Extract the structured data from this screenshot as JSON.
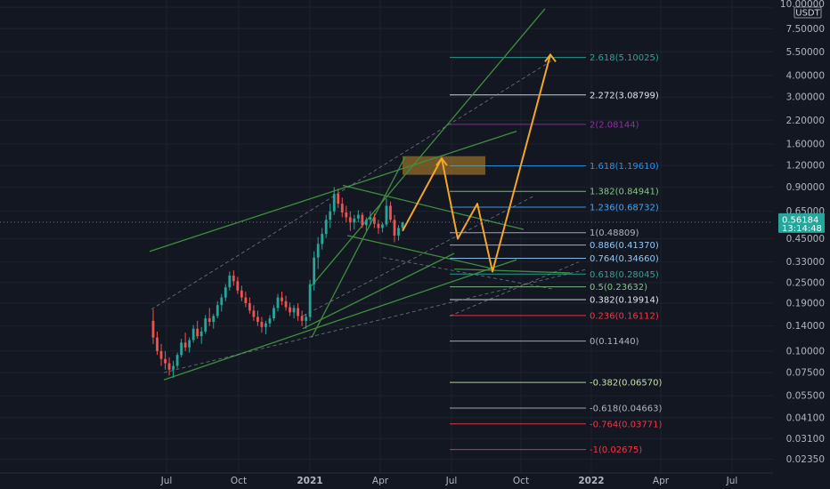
{
  "chart_data": {
    "type": "candlestick",
    "symbol_quote": "USDT",
    "scale": "log",
    "ylim": [
      0.0205,
      10.5
    ],
    "y_ticks": [
      "10.00000",
      "7.50000",
      "5.50000",
      "4.00000",
      "3.00000",
      "2.20000",
      "1.60000",
      "1.20000",
      "0.90000",
      "0.65000",
      "0.45000",
      "0.33000",
      "0.25000",
      "0.19000",
      "0.14000",
      "0.10000",
      "0.07500",
      "0.05500",
      "0.04100",
      "0.03100",
      "0.02350"
    ],
    "x_ticks": [
      "Jul",
      "Oct",
      "2021",
      "Apr",
      "Jul",
      "Oct",
      "2022",
      "Apr",
      "Jul"
    ],
    "bold_x_ticks": [
      "2021",
      "2022"
    ],
    "last_price": {
      "value": "0.56184",
      "countdown": "13:14:48",
      "color": "#26a69a"
    },
    "candles_ohlc": [
      [
        0.15,
        0.175,
        0.11,
        0.12
      ],
      [
        0.12,
        0.13,
        0.095,
        0.1
      ],
      [
        0.1,
        0.11,
        0.082,
        0.09
      ],
      [
        0.09,
        0.1,
        0.078,
        0.085
      ],
      [
        0.085,
        0.092,
        0.072,
        0.078
      ],
      [
        0.078,
        0.088,
        0.07,
        0.082
      ],
      [
        0.082,
        0.098,
        0.079,
        0.095
      ],
      [
        0.095,
        0.118,
        0.092,
        0.112
      ],
      [
        0.112,
        0.128,
        0.1,
        0.105
      ],
      [
        0.105,
        0.12,
        0.098,
        0.116
      ],
      [
        0.116,
        0.142,
        0.112,
        0.135
      ],
      [
        0.135,
        0.15,
        0.118,
        0.122
      ],
      [
        0.122,
        0.138,
        0.11,
        0.13
      ],
      [
        0.13,
        0.162,
        0.126,
        0.155
      ],
      [
        0.155,
        0.178,
        0.14,
        0.148
      ],
      [
        0.148,
        0.165,
        0.135,
        0.16
      ],
      [
        0.16,
        0.195,
        0.155,
        0.185
      ],
      [
        0.185,
        0.215,
        0.17,
        0.205
      ],
      [
        0.205,
        0.245,
        0.195,
        0.235
      ],
      [
        0.235,
        0.29,
        0.225,
        0.275
      ],
      [
        0.275,
        0.295,
        0.24,
        0.255
      ],
      [
        0.255,
        0.27,
        0.215,
        0.225
      ],
      [
        0.225,
        0.24,
        0.195,
        0.205
      ],
      [
        0.205,
        0.222,
        0.18,
        0.19
      ],
      [
        0.19,
        0.205,
        0.165,
        0.172
      ],
      [
        0.172,
        0.185,
        0.15,
        0.158
      ],
      [
        0.158,
        0.172,
        0.14,
        0.148
      ],
      [
        0.148,
        0.158,
        0.128,
        0.138
      ],
      [
        0.138,
        0.15,
        0.125,
        0.145
      ],
      [
        0.145,
        0.162,
        0.138,
        0.155
      ],
      [
        0.155,
        0.185,
        0.15,
        0.178
      ],
      [
        0.178,
        0.215,
        0.17,
        0.205
      ],
      [
        0.205,
        0.222,
        0.185,
        0.195
      ],
      [
        0.195,
        0.21,
        0.172,
        0.18
      ],
      [
        0.18,
        0.192,
        0.16,
        0.168
      ],
      [
        0.168,
        0.185,
        0.155,
        0.178
      ],
      [
        0.178,
        0.19,
        0.15,
        0.16
      ],
      [
        0.16,
        0.172,
        0.14,
        0.15
      ],
      [
        0.15,
        0.165,
        0.135,
        0.158
      ],
      [
        0.158,
        0.26,
        0.15,
        0.245
      ],
      [
        0.245,
        0.38,
        0.225,
        0.35
      ],
      [
        0.35,
        0.46,
        0.3,
        0.42
      ],
      [
        0.42,
        0.52,
        0.39,
        0.48
      ],
      [
        0.48,
        0.62,
        0.455,
        0.58
      ],
      [
        0.58,
        0.72,
        0.52,
        0.65
      ],
      [
        0.65,
        0.9,
        0.62,
        0.82
      ],
      [
        0.82,
        0.88,
        0.68,
        0.72
      ],
      [
        0.72,
        0.78,
        0.6,
        0.64
      ],
      [
        0.64,
        0.7,
        0.56,
        0.6
      ],
      [
        0.6,
        0.65,
        0.5,
        0.56
      ],
      [
        0.56,
        0.62,
        0.51,
        0.59
      ],
      [
        0.59,
        0.66,
        0.56,
        0.62
      ],
      [
        0.62,
        0.64,
        0.52,
        0.54
      ],
      [
        0.54,
        0.6,
        0.5,
        0.58
      ],
      [
        0.58,
        0.65,
        0.54,
        0.6
      ],
      [
        0.6,
        0.63,
        0.52,
        0.55
      ],
      [
        0.55,
        0.58,
        0.48,
        0.52
      ],
      [
        0.52,
        0.56,
        0.49,
        0.545
      ],
      [
        0.545,
        0.77,
        0.53,
        0.7
      ],
      [
        0.7,
        0.74,
        0.56,
        0.58
      ],
      [
        0.58,
        0.62,
        0.43,
        0.47
      ],
      [
        0.47,
        0.54,
        0.44,
        0.52
      ],
      [
        0.52,
        0.56,
        0.5,
        0.562
      ]
    ],
    "fib_levels": [
      {
        "label": "2.618(5.10025)",
        "value": 5.10025,
        "color": "#26a69a"
      },
      {
        "label": "2.272(3.08799)",
        "value": 3.08799,
        "color": "#e0e3eb"
      },
      {
        "label": "2(2.08144)",
        "value": 2.08144,
        "color": "#9c27b0"
      },
      {
        "label": "1.618(1.19610)",
        "value": 1.1961,
        "color": "#2196f3"
      },
      {
        "label": "1.382(0.84941)",
        "value": 0.84941,
        "color": "#81c784"
      },
      {
        "label": "1.236(0.68732)",
        "value": 0.68732,
        "color": "#42a5f5"
      },
      {
        "label": "1(0.48809)",
        "value": 0.48809,
        "color": "#b2b5be"
      },
      {
        "label": "0.886(0.41370)",
        "value": 0.4137,
        "color": "#90caf9"
      },
      {
        "label": "0.764(0.34660)",
        "value": 0.3466,
        "color": "#90caf9"
      },
      {
        "label": "0.618(0.28045)",
        "value": 0.28045,
        "color": "#26a69a"
      },
      {
        "label": "0.5(0.23632)",
        "value": 0.23632,
        "color": "#81c784"
      },
      {
        "label": "0.382(0.19914)",
        "value": 0.19914,
        "color": "#e0e3eb"
      },
      {
        "label": "0.236(0.16112)",
        "value": 0.16112,
        "color": "#f23645"
      },
      {
        "label": "0(0.11440)",
        "value": 0.1144,
        "color": "#b2b5be"
      },
      {
        "label": "-0.382(0.06570)",
        "value": 0.0657,
        "color": "#c5e1a5"
      },
      {
        "label": "-0.618(0.04663)",
        "value": 0.04663,
        "color": "#b2b5be"
      },
      {
        "label": "-0.764(0.03771)",
        "value": 0.03771,
        "color": "#f23645"
      },
      {
        "label": "-1(0.02675)",
        "value": 0.02675,
        "color": "#f23645"
      }
    ],
    "highlight_zone": {
      "from": 1.06,
      "to": 1.36,
      "color": "#c08a2e"
    },
    "colors": {
      "background": "#131722",
      "up": "#26a69a",
      "down": "#ef5350",
      "channel": "#3f8f3f",
      "projection": "#f5a623",
      "grid": "#1e222d"
    }
  }
}
